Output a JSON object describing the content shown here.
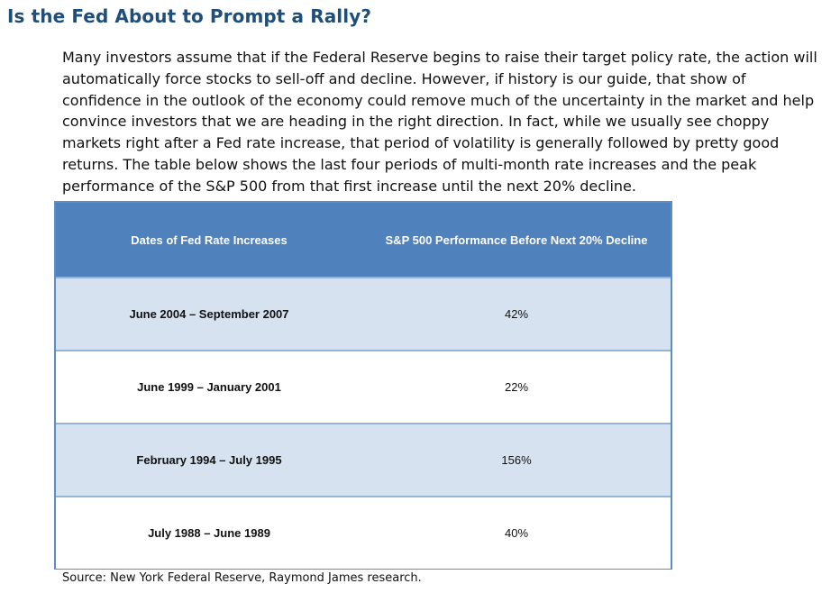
{
  "title": "Is the Fed About to Prompt a Rally?",
  "paragraph": "Many investors assume that if the Federal Reserve begins to raise their target policy rate, the action will automatically force stocks to sell-off and decline. However, if history is our guide, that show of confidence in the outlook of the economy could remove much of the uncertainty in the market and help convince investors that we are heading in the right direction. In fact, while we usually see choppy markets right after a Fed rate increase, that period of volatility is generally followed by pretty good returns. The table below shows the last four periods of multi-month rate increases and the peak performance of the S&P 500 from that first increase until the next 20% decline.",
  "table": {
    "headers": [
      "Dates of Fed Rate Increases",
      "S&P 500 Performance Before Next 20% Decline"
    ],
    "rows": [
      [
        "June 2004 – September 2007",
        "42%"
      ],
      [
        "June 1999 – January 2001",
        "22%"
      ],
      [
        "February 1994 – July 1995",
        "156%"
      ],
      [
        "July 1988 – June 1989",
        "40%"
      ]
    ]
  },
  "source": "Source: New York Federal Reserve, Raymond James research.",
  "colors": {
    "title": "#1f4e79",
    "header_bg": "#4f81bd",
    "shaded_row": "#d7e2f0",
    "border": "#5b8dc9"
  }
}
